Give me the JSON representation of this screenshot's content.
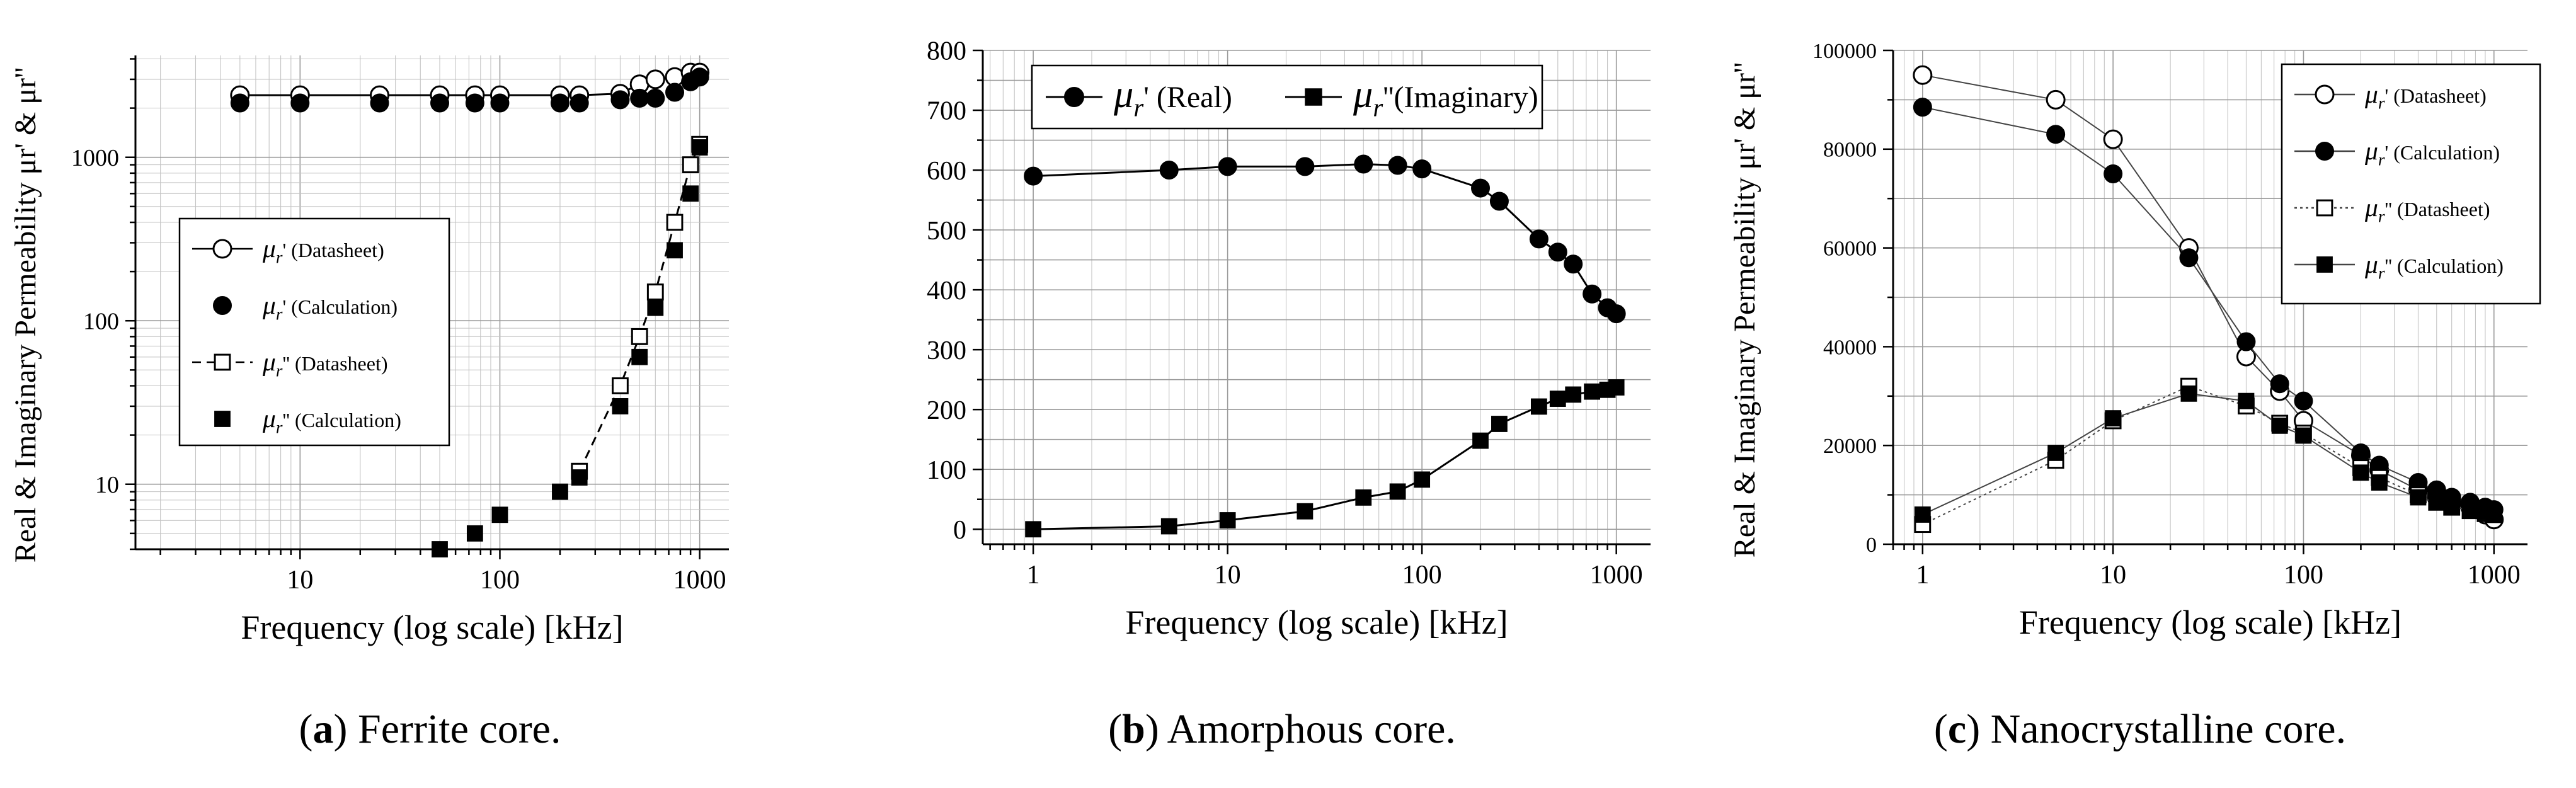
{
  "figure": {
    "captions": [
      {
        "letter": "a",
        "text": "Ferrite core."
      },
      {
        "letter": "b",
        "text": "Amorphous core."
      },
      {
        "letter": "c",
        "text": "Nanocrystalline core."
      }
    ]
  },
  "chart_data": [
    {
      "id": "a",
      "type": "scatter",
      "title": "",
      "xlabel": "Frequency (log scale) [kHz]",
      "ylabel": "Real & Imaginary Permeability μr' & μr''",
      "xscale": "log",
      "yscale": "log",
      "xlim": [
        1.5,
        1400
      ],
      "ylim": [
        4,
        4200
      ],
      "xticks": [
        10,
        100,
        1000
      ],
      "xtick_labels": [
        "10",
        "100",
        "1000"
      ],
      "yticks": [
        10,
        100,
        1000
      ],
      "ytick_labels": [
        "10",
        "100",
        "1000"
      ],
      "legend_position": "left-center",
      "series": [
        {
          "name": "μr' (Datasheet)",
          "legend_label": "μr' (Datasheet)",
          "marker": "circle-open",
          "line": "solid",
          "x": [
            5,
            10,
            25,
            50,
            75,
            100,
            200,
            250,
            400,
            500,
            600,
            750,
            900,
            1000
          ],
          "y": [
            2400,
            2400,
            2400,
            2400,
            2400,
            2400,
            2400,
            2400,
            2450,
            2800,
            3000,
            3100,
            3300,
            3300
          ]
        },
        {
          "name": "μr' (Calculation)",
          "legend_label": "μr' (Calculation)",
          "marker": "circle-filled",
          "line": "none",
          "x": [
            5,
            10,
            25,
            50,
            75,
            100,
            200,
            250,
            400,
            500,
            600,
            750,
            900,
            1000
          ],
          "y": [
            2150,
            2150,
            2150,
            2150,
            2150,
            2150,
            2150,
            2150,
            2250,
            2300,
            2300,
            2500,
            2900,
            3100
          ]
        },
        {
          "name": "μr'' (Datasheet)",
          "legend_label": "μr'' (Datasheet)",
          "marker": "square-open",
          "line": "dashed",
          "x": [
            250,
            400,
            500,
            600,
            750,
            900,
            1000
          ],
          "y": [
            12,
            40,
            80,
            150,
            400,
            900,
            1200
          ]
        },
        {
          "name": "μr'' (Calculation)",
          "legend_label": "μr'' (Calculation)",
          "marker": "square-filled",
          "line": "none",
          "x": [
            50,
            75,
            100,
            200,
            250,
            400,
            500,
            600,
            750,
            900,
            1000
          ],
          "y": [
            4,
            5,
            6.5,
            9,
            11,
            30,
            60,
            120,
            270,
            600,
            1150
          ]
        }
      ]
    },
    {
      "id": "b",
      "type": "scatter",
      "title": "",
      "xlabel": "Frequency (log scale) [kHz]",
      "ylabel": "",
      "xscale": "log",
      "yscale": "linear",
      "xlim": [
        0.55,
        1500
      ],
      "ylim": [
        -25,
        800
      ],
      "xticks": [
        1,
        10,
        100,
        1000
      ],
      "xtick_labels": [
        "1",
        "10",
        "100",
        "1000"
      ],
      "yticks": [
        0,
        100,
        200,
        300,
        400,
        500,
        600,
        700,
        800
      ],
      "ytick_labels": [
        "0",
        "100",
        "200",
        "300",
        "400",
        "500",
        "600",
        "700",
        "800"
      ],
      "legend_position": "top",
      "series": [
        {
          "name": "μr' (Real)",
          "legend_label": "μr' (Real)",
          "marker": "circle-filled",
          "line": "solid",
          "x": [
            1,
            5,
            10,
            25,
            50,
            75,
            100,
            200,
            250,
            400,
            500,
            600,
            750,
            900,
            1000
          ],
          "y": [
            590,
            600,
            606,
            606,
            610,
            608,
            602,
            570,
            548,
            485,
            463,
            443,
            393,
            370,
            360
          ]
        },
        {
          "name": "μr'' (Imaginary)",
          "legend_label": "μr''(Imaginary)",
          "marker": "square-filled",
          "line": "solid",
          "x": [
            1,
            5,
            10,
            25,
            50,
            75,
            100,
            200,
            250,
            400,
            500,
            600,
            750,
            900,
            1000
          ],
          "y": [
            0,
            5,
            15,
            30,
            53,
            63,
            83,
            148,
            176,
            205,
            218,
            225,
            230,
            233,
            237
          ]
        }
      ]
    },
    {
      "id": "c",
      "type": "scatter",
      "title": "",
      "xlabel": "Frequency (log scale) [kHz]",
      "ylabel": "Real & Imaginary Permeability μr' & μr''",
      "xscale": "log",
      "yscale": "linear",
      "xlim": [
        0.7,
        1500
      ],
      "ylim": [
        0,
        100000
      ],
      "xticks": [
        1,
        10,
        100,
        1000
      ],
      "xtick_labels": [
        "1",
        "10",
        "100",
        "1000"
      ],
      "yticks": [
        0,
        20000,
        40000,
        60000,
        80000,
        100000
      ],
      "ytick_labels": [
        "0",
        "20000",
        "40000",
        "60000",
        "80000",
        "100000"
      ],
      "legend_position": "top-right",
      "series": [
        {
          "name": "μr' (Datasheet)",
          "legend_label": "μr' (Datasheet)",
          "marker": "circle-open",
          "line": "solid",
          "x": [
            1,
            5,
            10,
            25,
            50,
            75,
            100,
            200,
            250,
            400,
            500,
            600,
            750,
            900,
            1000
          ],
          "y": [
            95000,
            90000,
            82000,
            60000,
            38000,
            31000,
            25000,
            18000,
            15000,
            11000,
            9500,
            8500,
            7500,
            6000,
            5000
          ]
        },
        {
          "name": "μr' (Calculation)",
          "legend_label": "μr' (Calculation)",
          "marker": "circle-filled",
          "line": "solid",
          "x": [
            1,
            5,
            10,
            25,
            50,
            75,
            100,
            200,
            250,
            400,
            500,
            600,
            750,
            900,
            1000
          ],
          "y": [
            88500,
            83000,
            75000,
            58000,
            41000,
            32500,
            29000,
            18500,
            16000,
            12500,
            11000,
            9500,
            8500,
            7500,
            7000
          ]
        },
        {
          "name": "μr'' (Datasheet)",
          "legend_label": "μr'' (Datasheet)",
          "marker": "square-open",
          "line": "dotted",
          "x": [
            1,
            5,
            10,
            25,
            50,
            75,
            100,
            200,
            250,
            400,
            500,
            600,
            750,
            900,
            1000
          ],
          "y": [
            4000,
            17000,
            25000,
            32000,
            28000,
            24500,
            22500,
            15500,
            13500,
            10000,
            8500,
            7500,
            6800,
            6200,
            6000
          ]
        },
        {
          "name": "μr'' (Calculation)",
          "legend_label": "μr'' (Calculation)",
          "marker": "square-filled",
          "line": "solid",
          "x": [
            1,
            5,
            10,
            25,
            50,
            75,
            100,
            200,
            250,
            400,
            500,
            600,
            750,
            900,
            1000
          ],
          "y": [
            6000,
            18500,
            25500,
            30500,
            29000,
            24000,
            22000,
            14500,
            12500,
            9500,
            8500,
            7500,
            7000,
            6500,
            6000
          ]
        }
      ]
    }
  ]
}
